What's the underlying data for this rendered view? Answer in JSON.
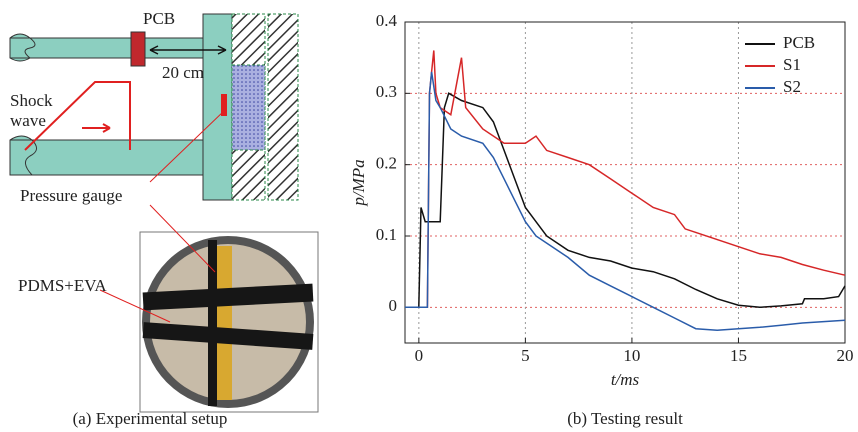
{
  "chart_data": {
    "type": "line",
    "caption": "(b) Testing result",
    "xlabel": "t/ms",
    "ylabel": "p/MPa",
    "xlim": [
      -0.65,
      20
    ],
    "ylim": [
      -0.05,
      0.4
    ],
    "xticks": [
      0,
      5,
      10,
      15,
      20
    ],
    "yticks": [
      0,
      0.1,
      0.2,
      0.3,
      0.4
    ],
    "grid": true,
    "legend": "upper right",
    "series": [
      {
        "name": "PCB",
        "color": "#111111",
        "x": [
          -0.65,
          0,
          0.1,
          0.3,
          1,
          1.1,
          1.2,
          1.4,
          2,
          3,
          3.5,
          4,
          4.5,
          5,
          5.5,
          6,
          7,
          8,
          9,
          10,
          11,
          12,
          13,
          14,
          15,
          16,
          17,
          18,
          18.1,
          19,
          19.7,
          20
        ],
        "values": [
          0,
          0,
          0.14,
          0.12,
          0.12,
          0.2,
          0.28,
          0.3,
          0.29,
          0.28,
          0.26,
          0.22,
          0.18,
          0.14,
          0.12,
          0.1,
          0.08,
          0.07,
          0.065,
          0.055,
          0.05,
          0.04,
          0.025,
          0.012,
          0.003,
          0,
          0.002,
          0.005,
          0.012,
          0.012,
          0.015,
          0.03
        ]
      },
      {
        "name": "S1",
        "color": "#d62728",
        "x": [
          -0.65,
          0.4,
          0.5,
          0.6,
          0.7,
          0.8,
          1,
          1.5,
          2,
          2.2,
          3,
          4,
          5,
          5.5,
          6,
          7,
          8,
          9,
          10,
          11,
          12,
          12.5,
          13,
          14,
          15,
          16,
          17,
          18,
          19,
          20
        ],
        "values": [
          0,
          0,
          0.3,
          0.33,
          0.36,
          0.3,
          0.28,
          0.27,
          0.35,
          0.28,
          0.25,
          0.23,
          0.23,
          0.24,
          0.22,
          0.21,
          0.2,
          0.18,
          0.16,
          0.14,
          0.13,
          0.11,
          0.105,
          0.095,
          0.085,
          0.075,
          0.07,
          0.06,
          0.052,
          0.045
        ]
      },
      {
        "name": "S2",
        "color": "#2a5caa",
        "x": [
          -0.65,
          0.4,
          0.5,
          0.6,
          0.8,
          1,
          1.5,
          2,
          3,
          3.5,
          4,
          4.5,
          5,
          5.5,
          6,
          7,
          8,
          9,
          10,
          11,
          12,
          13,
          14,
          15,
          16,
          17,
          18,
          19,
          20
        ],
        "values": [
          0,
          0,
          0.3,
          0.33,
          0.29,
          0.28,
          0.25,
          0.24,
          0.23,
          0.21,
          0.18,
          0.15,
          0.12,
          0.1,
          0.09,
          0.07,
          0.045,
          0.03,
          0.015,
          0,
          -0.015,
          -0.03,
          -0.032,
          -0.03,
          -0.028,
          -0.025,
          -0.022,
          -0.02,
          -0.018
        ]
      }
    ]
  },
  "diagram": {
    "pcb": "PCB",
    "distance": "20 cm",
    "shock": "Shock",
    "wave": "wave",
    "pressure_gauge": "Pressure gauge",
    "material": "PDMS+EVA",
    "caption": "(a) Experimental setup"
  }
}
